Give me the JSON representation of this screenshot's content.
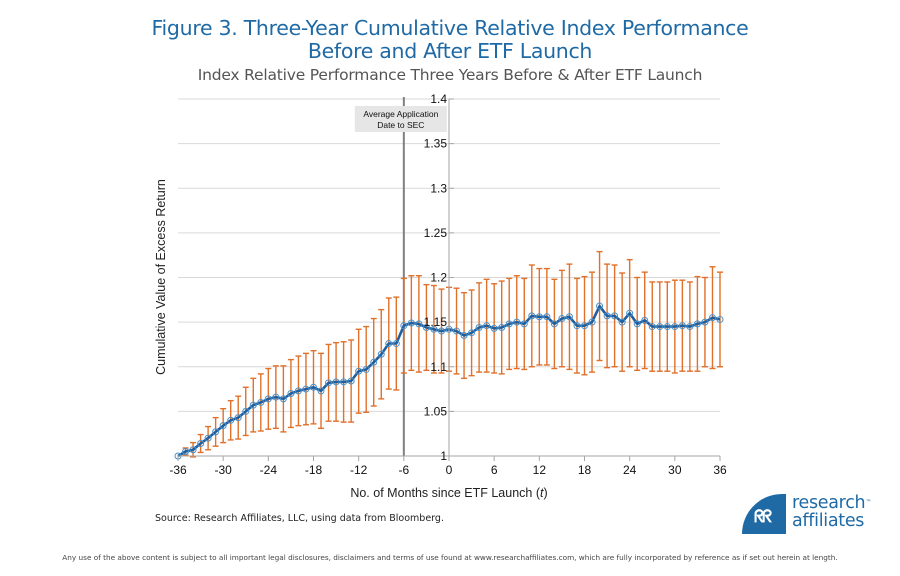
{
  "figure": {
    "title_line1": "Figure 3. Three-Year Cumulative Relative Index Performance",
    "title_line2": "Before and After ETF Launch",
    "subtitle": "Index Relative Performance Three Years Before & After ETF Launch",
    "source": "Source: Research Affiliates, LLC, using data from Bloomberg.",
    "legal": "Any use of the above content is subject to all important legal disclosures, disclaimers and terms of use found at www.researchaffiliates.com, which are fully incorporated by reference as if set out herein at length."
  },
  "logo": {
    "mark": "ᖇᖇ",
    "line1": "research",
    "line2": "affiliates",
    "tm": "™"
  },
  "colors": {
    "line": "#1f5f9f",
    "marker": "#4a90c8",
    "error": "#e0702a",
    "grid": "#d9d9d9",
    "vline": "#808080",
    "annot_bg": "#e6e6e6"
  },
  "chart_data": {
    "type": "line",
    "title": "Index Relative Performance Three Years Before & After ETF Launch",
    "xlabel": "No. of Months since ETF Launch (t)",
    "xlabel_main": "No. of Months since ETF Launch (",
    "xlabel_italic": "t",
    "xlabel_end": ")",
    "ylabel": "Cumulative Value of Excess Return",
    "xlim": [
      -36,
      36
    ],
    "ylim": [
      1,
      1.4
    ],
    "xticks": [
      -36,
      -30,
      -24,
      -18,
      -12,
      -6,
      0,
      6,
      12,
      18,
      24,
      30,
      36
    ],
    "yticks": [
      1,
      1.05,
      1.1,
      1.15,
      1.2,
      1.25,
      1.3,
      1.35,
      1.4
    ],
    "ytick_labels": [
      "1",
      "1.05",
      "1.1",
      "1.15",
      "1.2",
      "1.25",
      "1.3",
      "1.35",
      "1.4"
    ],
    "grid": true,
    "annotation": {
      "x": -6,
      "line1": "Average Application",
      "line2": "Date to SEC"
    },
    "series": [
      {
        "name": "Cumulative Value of Excess Return",
        "x": [
          -36,
          -35,
          -34,
          -33,
          -32,
          -31,
          -30,
          -29,
          -28,
          -27,
          -26,
          -25,
          -24,
          -23,
          -22,
          -21,
          -20,
          -19,
          -18,
          -17,
          -16,
          -15,
          -14,
          -13,
          -12,
          -11,
          -10,
          -9,
          -8,
          -7,
          -6,
          -5,
          -4,
          -3,
          -2,
          -1,
          0,
          1,
          2,
          3,
          4,
          5,
          6,
          7,
          8,
          9,
          10,
          11,
          12,
          13,
          14,
          15,
          16,
          17,
          18,
          19,
          20,
          21,
          22,
          23,
          24,
          25,
          26,
          27,
          28,
          29,
          30,
          31,
          32,
          33,
          34,
          35,
          36
        ],
        "values": [
          1.0,
          1.005,
          1.007,
          1.014,
          1.02,
          1.027,
          1.034,
          1.04,
          1.043,
          1.05,
          1.057,
          1.06,
          1.064,
          1.066,
          1.064,
          1.07,
          1.073,
          1.075,
          1.077,
          1.073,
          1.082,
          1.083,
          1.083,
          1.084,
          1.095,
          1.097,
          1.105,
          1.114,
          1.126,
          1.126,
          1.146,
          1.149,
          1.148,
          1.144,
          1.142,
          1.14,
          1.142,
          1.14,
          1.135,
          1.138,
          1.144,
          1.146,
          1.143,
          1.144,
          1.148,
          1.15,
          1.148,
          1.157,
          1.156,
          1.156,
          1.148,
          1.154,
          1.156,
          1.146,
          1.146,
          1.15,
          1.168,
          1.157,
          1.157,
          1.15,
          1.16,
          1.148,
          1.152,
          1.145,
          1.145,
          1.145,
          1.145,
          1.146,
          1.145,
          1.148,
          1.15,
          1.155,
          1.153
        ],
        "err_low": [
          1.0,
          1.001,
          0.999,
          1.004,
          1.007,
          1.011,
          1.015,
          1.018,
          1.019,
          1.023,
          1.027,
          1.028,
          1.03,
          1.031,
          1.027,
          1.032,
          1.034,
          1.035,
          1.036,
          1.031,
          1.039,
          1.039,
          1.038,
          1.038,
          1.048,
          1.049,
          1.056,
          1.064,
          1.075,
          1.074,
          1.093,
          1.096,
          1.094,
          1.096,
          1.093,
          1.093,
          1.095,
          1.092,
          1.087,
          1.09,
          1.094,
          1.094,
          1.093,
          1.092,
          1.097,
          1.098,
          1.097,
          1.1,
          1.102,
          1.102,
          1.098,
          1.1,
          1.097,
          1.093,
          1.091,
          1.094,
          1.107,
          1.099,
          1.1,
          1.095,
          1.1,
          1.096,
          1.098,
          1.095,
          1.095,
          1.095,
          1.093,
          1.095,
          1.095,
          1.095,
          1.1,
          1.098,
          1.1
        ],
        "err_high": [
          1.0,
          1.009,
          1.015,
          1.024,
          1.033,
          1.043,
          1.053,
          1.062,
          1.067,
          1.077,
          1.087,
          1.092,
          1.098,
          1.101,
          1.101,
          1.108,
          1.112,
          1.115,
          1.118,
          1.115,
          1.125,
          1.127,
          1.128,
          1.13,
          1.142,
          1.145,
          1.154,
          1.164,
          1.177,
          1.178,
          1.199,
          1.202,
          1.202,
          1.192,
          1.191,
          1.187,
          1.189,
          1.188,
          1.183,
          1.186,
          1.194,
          1.198,
          1.193,
          1.196,
          1.199,
          1.202,
          1.199,
          1.214,
          1.21,
          1.21,
          1.198,
          1.208,
          1.215,
          1.199,
          1.201,
          1.206,
          1.229,
          1.215,
          1.214,
          1.205,
          1.22,
          1.2,
          1.206,
          1.195,
          1.195,
          1.195,
          1.197,
          1.197,
          1.195,
          1.201,
          1.2,
          1.212,
          1.206
        ]
      }
    ]
  }
}
